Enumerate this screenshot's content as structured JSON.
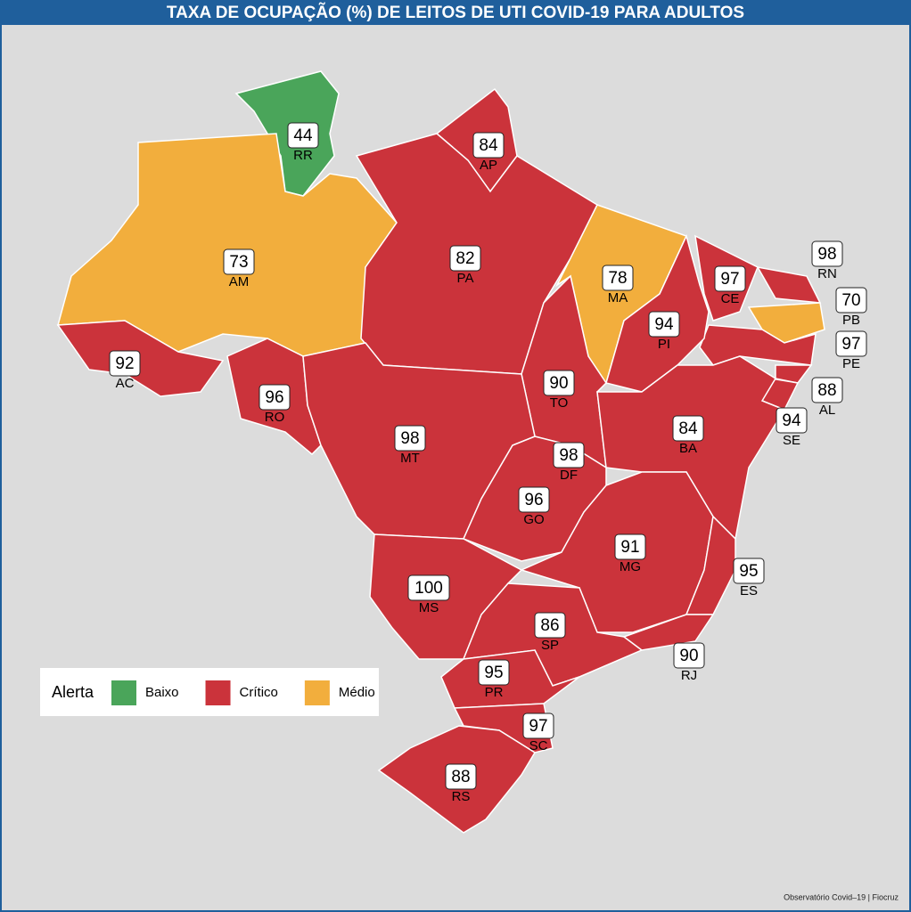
{
  "title": "TAXA DE OCUPAÇÃO (%) DE LEITOS DE UTI COVID-19 PARA ADULTOS",
  "legend": {
    "title": "Alerta",
    "items": [
      {
        "name": "Baixo",
        "color": "#4aa55a"
      },
      {
        "name": "Crítico",
        "color": "#cb333b"
      },
      {
        "name": "Médio",
        "color": "#f2ae3d"
      }
    ]
  },
  "states": [
    {
      "code": "RR",
      "value": 44,
      "alert": "Baixo"
    },
    {
      "code": "AP",
      "value": 84,
      "alert": "Crítico"
    },
    {
      "code": "AM",
      "value": 73,
      "alert": "Médio"
    },
    {
      "code": "PA",
      "value": 82,
      "alert": "Crítico"
    },
    {
      "code": "MA",
      "value": 78,
      "alert": "Médio"
    },
    {
      "code": "CE",
      "value": 97,
      "alert": "Crítico"
    },
    {
      "code": "RN",
      "value": 98,
      "alert": "Crítico"
    },
    {
      "code": "PB",
      "value": 70,
      "alert": "Médio"
    },
    {
      "code": "PE",
      "value": 97,
      "alert": "Crítico"
    },
    {
      "code": "PI",
      "value": 94,
      "alert": "Crítico"
    },
    {
      "code": "AL",
      "value": 88,
      "alert": "Crítico"
    },
    {
      "code": "SE",
      "value": 94,
      "alert": "Crítico"
    },
    {
      "code": "AC",
      "value": 92,
      "alert": "Crítico"
    },
    {
      "code": "RO",
      "value": 96,
      "alert": "Crítico"
    },
    {
      "code": "TO",
      "value": 90,
      "alert": "Crítico"
    },
    {
      "code": "MT",
      "value": 98,
      "alert": "Crítico"
    },
    {
      "code": "BA",
      "value": 84,
      "alert": "Crítico"
    },
    {
      "code": "DF",
      "value": 98,
      "alert": "Crítico"
    },
    {
      "code": "GO",
      "value": 96,
      "alert": "Crítico"
    },
    {
      "code": "MG",
      "value": 91,
      "alert": "Crítico"
    },
    {
      "code": "ES",
      "value": 95,
      "alert": "Crítico"
    },
    {
      "code": "MS",
      "value": 100,
      "alert": "Crítico"
    },
    {
      "code": "SP",
      "value": 86,
      "alert": "Crítico"
    },
    {
      "code": "RJ",
      "value": 90,
      "alert": "Crítico"
    },
    {
      "code": "PR",
      "value": 95,
      "alert": "Crítico"
    },
    {
      "code": "SC",
      "value": 97,
      "alert": "Crítico"
    },
    {
      "code": "RS",
      "value": 88,
      "alert": "Crítico"
    }
  ],
  "source": "Observatório Covid–19 | Fiocruz"
}
